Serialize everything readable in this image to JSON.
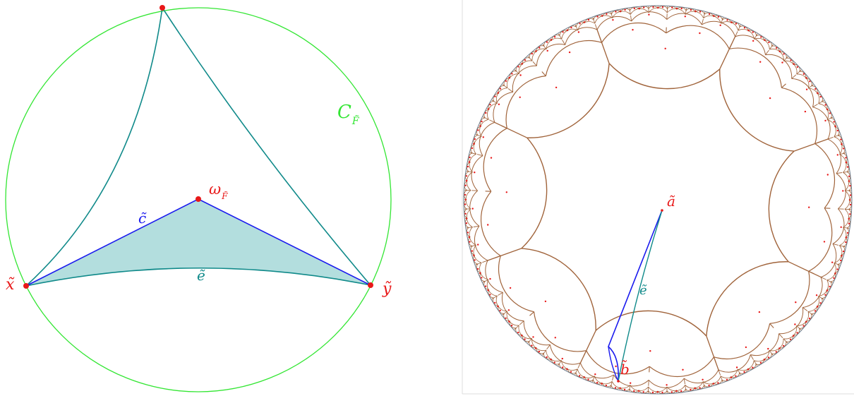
{
  "left_figure": {
    "circle_label": "C",
    "circle_label_sub": "F̃",
    "center_label": "ω",
    "center_label_sub": "F̃",
    "edge_c_label": "c̃",
    "edge_e_label": "ẽ",
    "point_x_label": "x̃",
    "point_y_label": "ỹ"
  },
  "right_figure": {
    "point_a_label": "ã",
    "point_b_label": "b̃",
    "edge_e_label": "ẽ"
  },
  "colors": {
    "circle": "#33e633",
    "teal": "#108a8a",
    "blue": "#1a1aee",
    "red": "#e81818",
    "fill": "#b3dede",
    "brown": "#a0633a"
  }
}
